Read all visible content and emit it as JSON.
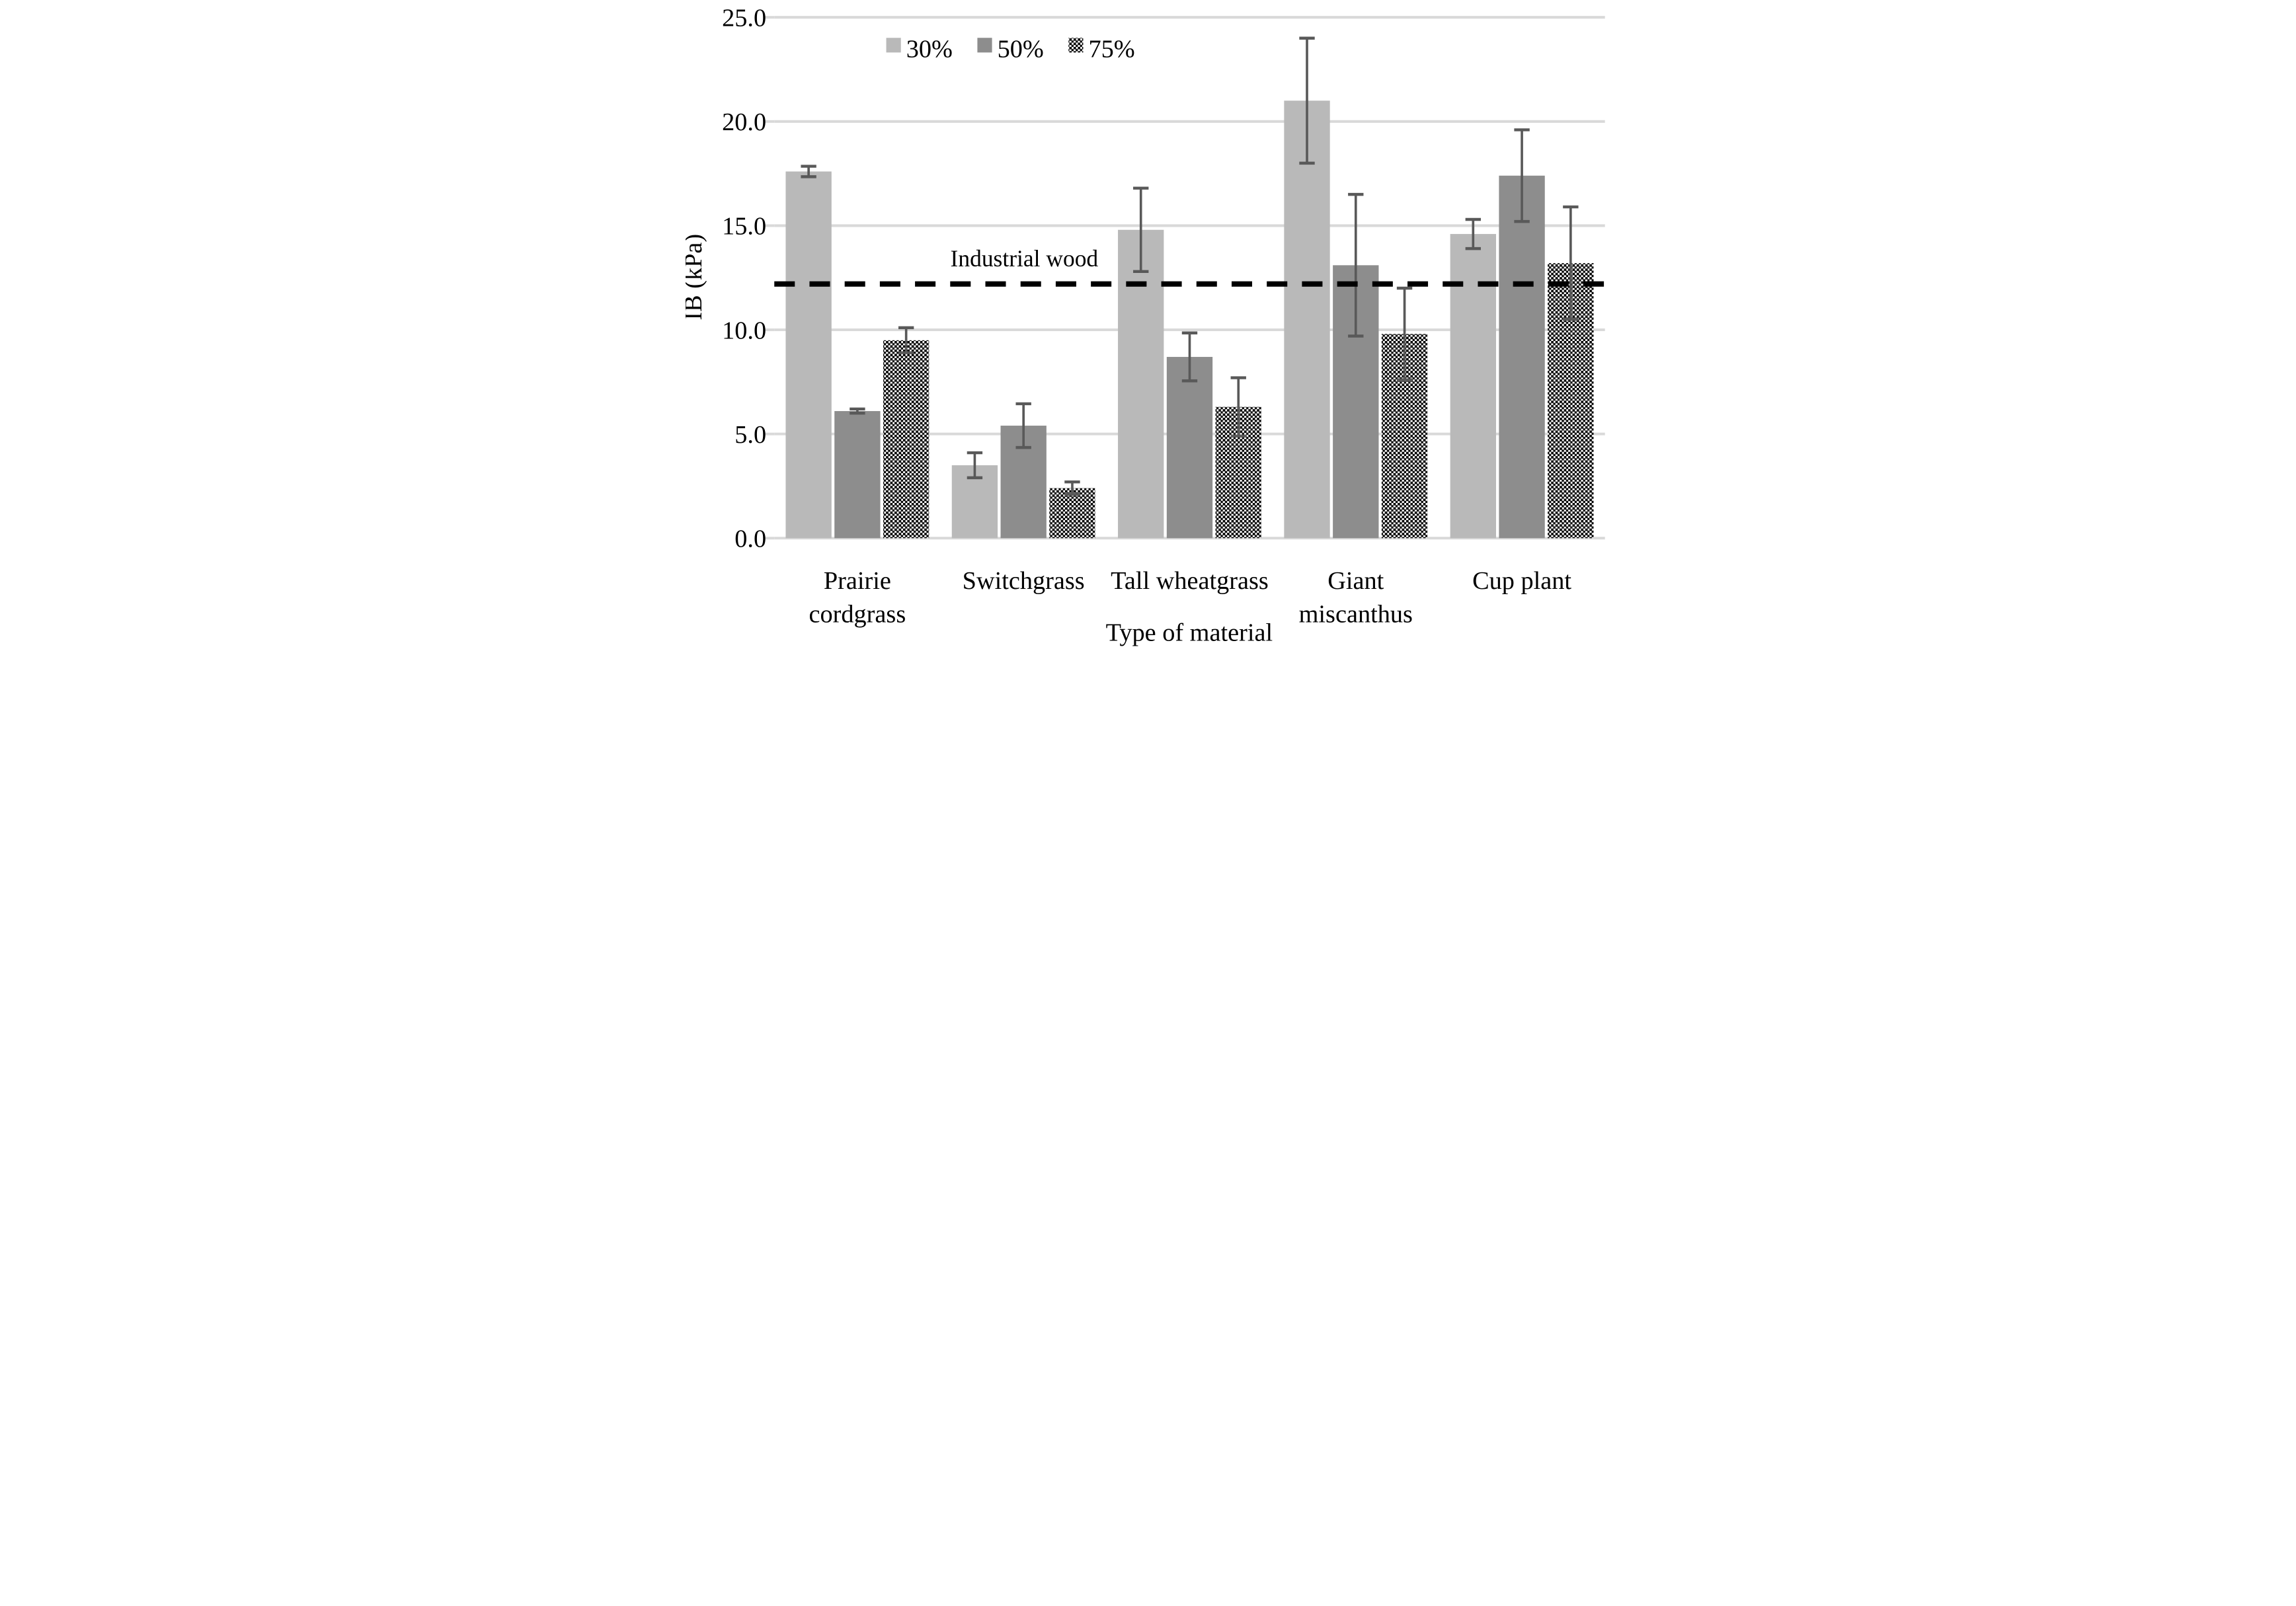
{
  "chart_data": {
    "type": "bar",
    "title": "",
    "xlabel": "Type of material",
    "ylabel": "IB (kPa)",
    "ylim": [
      0,
      25
    ],
    "ytick_step": 5,
    "ytick_labels": [
      "0.0",
      "5.0",
      "10.0",
      "15.0",
      "20.0",
      "25.0"
    ],
    "grid": true,
    "legend_position": "top-left-inside",
    "categories": [
      "Prairie cordgrass",
      "Switchgrass",
      "Tall wheatgrass",
      "Giant miscanthus",
      "Cup plant"
    ],
    "category_lines": [
      [
        "Prairie",
        "cordgrass"
      ],
      [
        "Switchgrass"
      ],
      [
        "Tall wheatgrass"
      ],
      [
        "Giant",
        "miscanthus"
      ],
      [
        "Cup plant"
      ]
    ],
    "series": [
      {
        "name": "30%",
        "fill": "#b9b9b9",
        "pattern": "solid",
        "values": [
          17.6,
          3.5,
          14.8,
          21.0,
          14.6
        ],
        "errors": [
          0.25,
          0.6,
          2.0,
          3.0,
          0.7
        ]
      },
      {
        "name": "50%",
        "fill": "#8d8d8d",
        "pattern": "solid",
        "values": [
          6.1,
          5.4,
          8.7,
          13.1,
          17.4
        ],
        "errors": [
          0.1,
          1.05,
          1.15,
          3.4,
          2.2
        ]
      },
      {
        "name": "75%",
        "fill": "#ffffff",
        "pattern": "checker",
        "values": [
          9.5,
          2.4,
          6.3,
          9.8,
          13.2
        ],
        "errors": [
          0.6,
          0.3,
          1.4,
          2.2,
          2.7
        ]
      }
    ],
    "reference_line": {
      "label": "Industrial wood",
      "value": 12.2,
      "style": "dashed",
      "color": "#000000"
    },
    "colors": {
      "error_bar": "#595959",
      "gridline": "#d9d9d9",
      "baseline": "#d9d9d9",
      "pattern_ink": "#000000",
      "background": "#ffffff",
      "text": "#000000"
    }
  }
}
